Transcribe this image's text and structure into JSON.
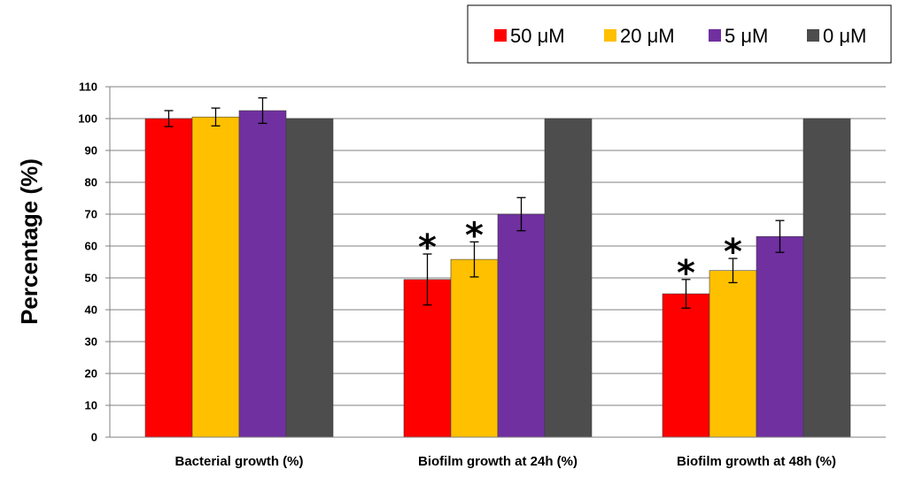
{
  "chart_data": {
    "type": "bar",
    "title": "",
    "xlabel": "",
    "ylabel": "Percentage (%)",
    "ylim": [
      0,
      110
    ],
    "yticks": [
      0,
      10,
      20,
      30,
      40,
      50,
      60,
      70,
      80,
      90,
      100,
      110
    ],
    "grid": true,
    "legend_position": "top-right",
    "categories": [
      "Bacterial growth (%)",
      "Biofilm growth at 24h (%)",
      "Biofilm growth at 48h (%)"
    ],
    "series": [
      {
        "name": "50 μM",
        "color": "#ff0000",
        "values": [
          100,
          49.5,
          45
        ],
        "errors": [
          2.5,
          8,
          4.5
        ],
        "significant": [
          false,
          true,
          true
        ]
      },
      {
        "name": "20 μM",
        "color": "#ffc000",
        "values": [
          100.5,
          55.8,
          52.3
        ],
        "errors": [
          2.8,
          5.5,
          3.8
        ],
        "significant": [
          false,
          true,
          true
        ]
      },
      {
        "name": "5 μM",
        "color": "#7030a0",
        "values": [
          102.5,
          70,
          63
        ],
        "errors": [
          4,
          5.2,
          5
        ],
        "significant": [
          false,
          false,
          false
        ]
      },
      {
        "name": "0 μM",
        "color": "#4d4d4d",
        "values": [
          100,
          100,
          100
        ],
        "errors": [
          0,
          0,
          0
        ],
        "significant": [
          false,
          false,
          false
        ]
      }
    ],
    "significance_marker": "*"
  }
}
